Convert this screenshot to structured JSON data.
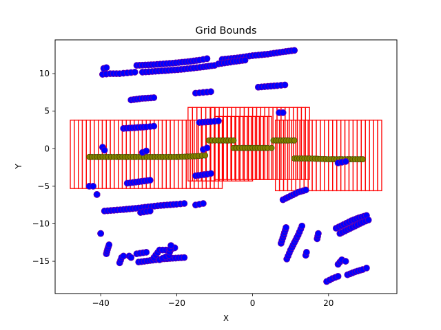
{
  "chart_data": {
    "type": "scatter",
    "title": "Grid Bounds",
    "xlabel": "X",
    "ylabel": "Y",
    "xlim": [
      -52,
      38
    ],
    "ylim": [
      -19.3,
      14.5
    ],
    "xticks": [
      -40,
      -20,
      0,
      20
    ],
    "yticks": [
      -15,
      -10,
      -5,
      0,
      5,
      10
    ],
    "grid": false,
    "colors": {
      "points": "#0000ff",
      "point_edge": "#6a00aa",
      "path": "#808000",
      "path_edge": "#4a4a00",
      "grid_cells": "#ff0000"
    },
    "series": [
      {
        "kind": "scatter",
        "color": "blue",
        "segments": [
          [
            [
              -39.5,
              9.9
            ],
            [
              -37.5,
              10.0
            ],
            [
              -35,
              10.0
            ],
            [
              -33,
              10.1
            ],
            [
              -31,
              10.2
            ]
          ],
          [
            [
              -39.2,
              10.7
            ],
            [
              -38.5,
              10.8
            ]
          ],
          [
            [
              -30.5,
              11.1
            ],
            [
              -26,
              11.2
            ],
            [
              -21,
              11.4
            ],
            [
              -17,
              11.6
            ],
            [
              -14,
              11.8
            ],
            [
              -12,
              12.0
            ]
          ],
          [
            [
              -29,
              10.2
            ],
            [
              -23,
              10.4
            ],
            [
              -18,
              10.6
            ],
            [
              -13,
              10.9
            ],
            [
              -10,
              11.1
            ]
          ],
          [
            [
              -8,
              11.9
            ],
            [
              -4,
              12.1
            ],
            [
              0,
              12.4
            ],
            [
              4,
              12.6
            ],
            [
              8,
              12.9
            ],
            [
              11,
              13.1
            ]
          ],
          [
            [
              -9,
              11.3
            ],
            [
              -5,
              11.6
            ],
            [
              -2,
              11.8
            ]
          ],
          [
            [
              -32,
              6.5
            ],
            [
              -29,
              6.7
            ],
            [
              -26,
              6.8
            ]
          ],
          [
            [
              -15,
              7.4
            ],
            [
              -13,
              7.5
            ],
            [
              -11,
              7.6
            ]
          ],
          [
            [
              1.5,
              8.2
            ],
            [
              4,
              8.3
            ],
            [
              6.5,
              8.4
            ],
            [
              8.5,
              8.5
            ]
          ],
          [
            [
              -34,
              2.7
            ],
            [
              -31,
              2.8
            ],
            [
              -28,
              2.9
            ],
            [
              -26,
              3.0
            ]
          ],
          [
            [
              -14,
              3.5
            ],
            [
              -11,
              3.6
            ],
            [
              -9,
              3.7
            ]
          ],
          [
            [
              7,
              4.8
            ],
            [
              8,
              4.8
            ]
          ],
          [
            [
              -39.5,
              0.2
            ],
            [
              -39,
              -0.2
            ]
          ],
          [
            [
              -29,
              -0.5
            ],
            [
              -28,
              -0.3
            ]
          ],
          [
            [
              -13,
              -0.1
            ],
            [
              -12,
              0.1
            ]
          ],
          [
            [
              -33,
              -4.6
            ],
            [
              -30,
              -4.4
            ],
            [
              -27,
              -4.2
            ]
          ],
          [
            [
              -15,
              -3.6
            ],
            [
              -12,
              -3.4
            ],
            [
              -11,
              -3.3
            ]
          ],
          [
            [
              -43,
              -5.0
            ],
            [
              -42,
              -5.0
            ]
          ],
          [
            [
              -41,
              -6.1
            ]
          ],
          [
            [
              -39,
              -8.3
            ],
            [
              -34,
              -8.1
            ],
            [
              -30,
              -7.9
            ],
            [
              -25,
              -7.6
            ],
            [
              -20,
              -7.4
            ],
            [
              -18,
              -7.3
            ]
          ],
          [
            [
              -29.5,
              -8.5
            ],
            [
              -27,
              -8.3
            ]
          ],
          [
            [
              -15,
              -7.5
            ],
            [
              -13,
              -7.3
            ]
          ],
          [
            [
              8,
              -6.8
            ],
            [
              10,
              -6.3
            ],
            [
              12,
              -5.8
            ],
            [
              14,
              -5.5
            ]
          ],
          [
            [
              -40,
              -11.3
            ]
          ],
          [
            [
              -38.5,
              -14
            ],
            [
              -38.2,
              -13.4
            ],
            [
              -37.8,
              -12.8
            ]
          ],
          [
            [
              -35,
              -15.2
            ],
            [
              -34.5,
              -14.5
            ],
            [
              -34,
              -14.3
            ]
          ],
          [
            [
              -32.5,
              -14.3
            ],
            [
              -32,
              -14.5
            ]
          ],
          [
            [
              -30,
              -15.1
            ],
            [
              -27,
              -14.9
            ],
            [
              -24,
              -14.7
            ],
            [
              -21,
              -14.6
            ],
            [
              -18,
              -14.5
            ]
          ],
          [
            [
              -30.5,
              -14.0
            ],
            [
              -28,
              -13.8
            ]
          ],
          [
            [
              -26,
              -14.5
            ],
            [
              -24.5,
              -13.5
            ],
            [
              -22,
              -13.5
            ],
            [
              -20.5,
              -13.2
            ]
          ],
          [
            [
              -24.5,
              -14.8
            ],
            [
              -22,
              -14.2
            ],
            [
              -21.5,
              -12.9
            ]
          ],
          [
            [
              7.5,
              -12.6
            ],
            [
              8.2,
              -11.5
            ],
            [
              8.8,
              -10.5
            ]
          ],
          [
            [
              9,
              -14.7
            ],
            [
              10,
              -13.5
            ],
            [
              11,
              -12.5
            ],
            [
              12,
              -11.5
            ],
            [
              13,
              -10.3
            ]
          ],
          [
            [
              14,
              -14.2
            ],
            [
              14.2,
              -13.8
            ]
          ],
          [
            [
              17,
              -12
            ],
            [
              17.3,
              -11.3
            ]
          ],
          [
            [
              22,
              -10.6
            ],
            [
              24,
              -10.1
            ],
            [
              26,
              -9.6
            ],
            [
              28,
              -9.2
            ],
            [
              30,
              -8.9
            ]
          ],
          [
            [
              23,
              -11.3
            ],
            [
              25,
              -10.8
            ],
            [
              27,
              -10.3
            ],
            [
              29,
              -9.8
            ],
            [
              30.5,
              -9.5
            ]
          ],
          [
            [
              22.5,
              -15.4
            ],
            [
              23.5,
              -14.8
            ],
            [
              24.5,
              -15.0
            ]
          ],
          [
            [
              19.5,
              -17.7
            ],
            [
              21,
              -17.3
            ],
            [
              22.5,
              -17.0
            ]
          ],
          [
            [
              25,
              -16.8
            ],
            [
              27,
              -16.4
            ],
            [
              29,
              -16.1
            ],
            [
              30,
              -15.9
            ]
          ],
          [
            [
              22.5,
              -1.9
            ],
            [
              24.5,
              -1.7
            ]
          ]
        ]
      },
      {
        "kind": "path",
        "color": "olive",
        "segments": [
          [
            [
              -43,
              -1.1
            ],
            [
              -39.5,
              -1.1
            ],
            [
              -35,
              -1.1
            ],
            [
              -30,
              -1.1
            ],
            [
              -25,
              -1.1
            ],
            [
              -20,
              -1.1
            ],
            [
              -15,
              -1.0
            ],
            [
              -12.5,
              -0.9
            ]
          ],
          [
            [
              -11.5,
              1.1
            ],
            [
              -9,
              1.1
            ],
            [
              -7,
              1.1
            ],
            [
              -5,
              1.1
            ]
          ],
          [
            [
              -5,
              0.1
            ],
            [
              -2,
              0.1
            ],
            [
              0,
              0.1
            ],
            [
              2,
              0.1
            ],
            [
              4,
              0.1
            ],
            [
              5,
              0.1
            ]
          ],
          [
            [
              5.5,
              1.1
            ],
            [
              7.5,
              1.1
            ],
            [
              9.5,
              1.1
            ],
            [
              11,
              1.1
            ]
          ],
          [
            [
              11,
              -1.3
            ],
            [
              15,
              -1.3
            ],
            [
              20,
              -1.4
            ],
            [
              25,
              -1.4
            ],
            [
              29,
              -1.4
            ]
          ]
        ]
      }
    ],
    "grid_regions": [
      {
        "x_range": [
          -48,
          -8
        ],
        "y_range": [
          -5.3,
          3.8
        ],
        "cells": 38
      },
      {
        "x_range": [
          -17,
          -10
        ],
        "y_range": [
          -4.3,
          5.5
        ],
        "cells": 6
      },
      {
        "x_range": [
          -11,
          0
        ],
        "y_range": [
          -4.3,
          5.5
        ],
        "cells": 10
      },
      {
        "x_range": [
          -10,
          5
        ],
        "y_range": [
          -4.1,
          4.3
        ],
        "cells": 14
      },
      {
        "x_range": [
          0,
          15
        ],
        "y_range": [
          -4.1,
          5.5
        ],
        "cells": 14
      },
      {
        "x_range": [
          6,
          34
        ],
        "y_range": [
          -5.6,
          3.8
        ],
        "cells": 26
      }
    ]
  }
}
